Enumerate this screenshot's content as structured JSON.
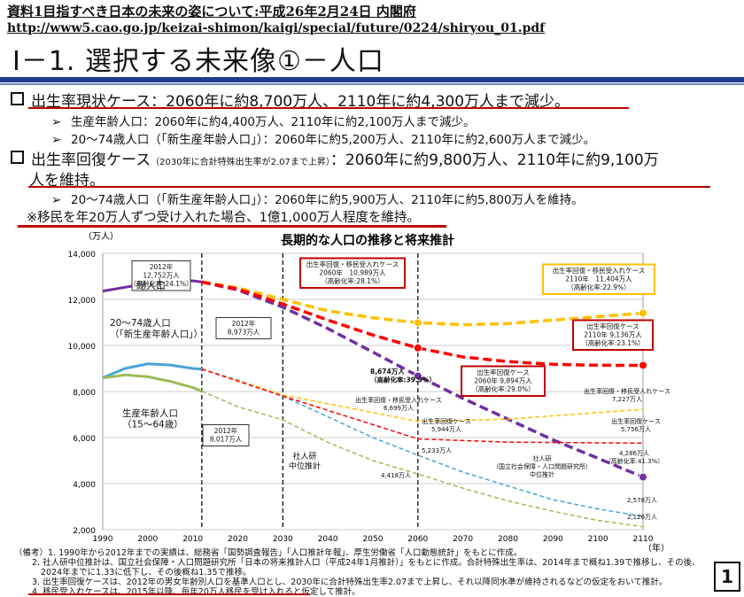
{
  "header": {
    "line1": "資料1目指すべき日本の未来の姿について:平成26年2月24日 内閣府",
    "line2": "http://www5.cao.go.jp/keizai-shimon/kaigi/special/future/0224/shiryou_01.pdf"
  },
  "title": "Ⅰ－1. 選択する未来像①－人口",
  "bullets": {
    "b1": "出生率現状ケース：2060年に約8,700万人、2110年に約4,300万人まで減少。",
    "b1s1": "生産年齢人口：2060年に約4,400万人、2110年に約2,100万人まで減少。",
    "b1s2": "20～74歳人口（「新生産年齢人口」）：2060年に約5,200万人、2110年に約2,600万人まで減少。",
    "b2a": "出生率回復ケース",
    "b2note": "（2030年に合計特殊出生率が2.07まで上昇）",
    "b2b": "：2060年に約9,800万人、2110年に約9,100万",
    "b2c": "人を維持。",
    "b2s1": "20～74歳人口（「新生産年齢人口」）：2060年に約5,900万人、2110年に約5,800万人を維持。",
    "b2s2": "※移民を年20万人ずつ受け入れた場合、1億1,000万人程度を維持。",
    "arrow": "➢"
  },
  "chart_data": {
    "type": "line",
    "title": "長期的な人口の推移と将来推計",
    "ylabel": "（万人）",
    "xlabel": "（年）",
    "xlim": [
      1990,
      2110
    ],
    "ylim": [
      2000,
      14000
    ],
    "xticks": [
      1990,
      2000,
      2010,
      2020,
      2030,
      2040,
      2050,
      2060,
      2070,
      2080,
      2090,
      2100,
      2110
    ],
    "yticks": [
      2000,
      4000,
      6000,
      8000,
      10000,
      12000,
      14000
    ],
    "vlines": [
      2012,
      2030,
      2060
    ],
    "series": [
      {
        "name": "総人口",
        "color": "#7030a0",
        "style": "solid",
        "x": [
          1990,
          2000,
          2010,
          2012
        ],
        "y": [
          12361,
          12693,
          12806,
          12752
        ]
      },
      {
        "name": "20～74歳人口（「新生産年齢人口」）",
        "color": "#4aa3d9",
        "style": "solid",
        "x": [
          1990,
          1995,
          2000,
          2005,
          2010,
          2012
        ],
        "y": [
          8600,
          9000,
          9200,
          9150,
          9000,
          8973
        ]
      },
      {
        "name": "生産年齢人口（15～64歳）",
        "color": "#9bbb59",
        "style": "solid",
        "x": [
          1990,
          1995,
          2000,
          2005,
          2010,
          2012
        ],
        "y": [
          8590,
          8720,
          8640,
          8440,
          8170,
          8017
        ]
      },
      {
        "name": "社人研 中位推計",
        "color": "#7030a0",
        "style": "dash",
        "x": [
          2012,
          2020,
          2030,
          2040,
          2050,
          2060,
          2070,
          2080,
          2090,
          2100,
          2110
        ],
        "y": [
          12752,
          12410,
          11660,
          10730,
          9710,
          8674,
          7700,
          6800,
          5900,
          5100,
          4286
        ]
      },
      {
        "name": "出生率回復・移民受入れケース",
        "color": "#ffc000",
        "style": "dash",
        "x": [
          2012,
          2020,
          2030,
          2040,
          2050,
          2060,
          2070,
          2080,
          2090,
          2100,
          2110
        ],
        "y": [
          12752,
          12500,
          12000,
          11500,
          11200,
          10989,
          10900,
          10950,
          11100,
          11250,
          11404
        ]
      },
      {
        "name": "出生率回復ケース",
        "color": "#ff0000",
        "style": "dash",
        "x": [
          2012,
          2020,
          2030,
          2040,
          2050,
          2060,
          2070,
          2080,
          2090,
          2100,
          2110
        ],
        "y": [
          12752,
          12450,
          11800,
          11100,
          10450,
          9894,
          9500,
          9300,
          9180,
          9140,
          9136
        ]
      },
      {
        "name": "新生産年齢人口（社人研中位）",
        "color": "#4aa3d9",
        "style": "dash",
        "x": [
          2012,
          2020,
          2030,
          2040,
          2050,
          2060,
          2070,
          2080,
          2090,
          2100,
          2110
        ],
        "y": [
          8973,
          8500,
          7800,
          6900,
          6000,
          5233,
          4500,
          3900,
          3300,
          2900,
          2578
        ]
      },
      {
        "name": "生産年齢人口（社人研中位）",
        "color": "#9bbb59",
        "style": "dash",
        "x": [
          2012,
          2020,
          2030,
          2040,
          2050,
          2060,
          2070,
          2080,
          2090,
          2100,
          2110
        ],
        "y": [
          8017,
          7340,
          6770,
          5790,
          5000,
          4418,
          3800,
          3250,
          2800,
          2400,
          2126
        ]
      },
      {
        "name": "新生産年齢人口（出生率回復・移民受入れ）",
        "color": "#ffc000",
        "style": "dash",
        "x": [
          2012,
          2030,
          2060,
          2080,
          2110
        ],
        "y": [
          8973,
          7850,
          6699,
          6800,
          7227
        ]
      },
      {
        "name": "新生産年齢人口（出生率回復）",
        "color": "#ff0000",
        "style": "dash",
        "x": [
          2012,
          2030,
          2060,
          2080,
          2110
        ],
        "y": [
          8973,
          7800,
          5944,
          5800,
          5756
        ]
      }
    ],
    "markers": [
      {
        "x": 2060,
        "y": 10989,
        "color": "#ffc000"
      },
      {
        "x": 2110,
        "y": 11404,
        "color": "#ffc000"
      },
      {
        "x": 2060,
        "y": 9894,
        "color": "#ff0000"
      },
      {
        "x": 2110,
        "y": 9136,
        "color": "#ff0000"
      },
      {
        "x": 2060,
        "y": 8674,
        "color": "#7030a0"
      },
      {
        "x": 2110,
        "y": 4286,
        "color": "#7030a0"
      }
    ],
    "annotations": {
      "a2012": [
        "2012年",
        "12,752万人",
        "（高齢化率:24.1%）"
      ],
      "sou": "総人口",
      "shin": [
        "20～74歳人口",
        "（「新生産年齢人口」）"
      ],
      "a8973": [
        "2012年",
        "8,973万人"
      ],
      "seisan": [
        "生産年齢人口",
        "（15～64歳）"
      ],
      "a8017": [
        "2012年",
        "8,017万人"
      ],
      "imin": [
        "出生率回復・移民受入れケース",
        "2060年　10,989万人",
        "（高齢化率:28.1%）"
      ],
      "imin2110": [
        "出生率回復・移民受入れケース",
        "2110年　11,404万人",
        "（高齢化率:22.9%）"
      ],
      "kaifuku2110": [
        "出生率回復ケース",
        "2110年 9,136万人",
        "（高齢化率:23.1%）"
      ],
      "a8674": [
        "8,674万人",
        "（高齢化率:39.9%）"
      ],
      "kaifuku2060": [
        "出生率回復ケース",
        "2060年 9,894万人",
        "（高齢化率:29.0%）"
      ],
      "l6699": [
        "出生率回復・移民受入れケース",
        "6,699万人"
      ],
      "l5944": [
        "出生率回復ケース",
        "5,944万人"
      ],
      "l5233": "5,233万人",
      "l4418": "4,418万人",
      "shajin1": [
        "社人研",
        "中位推計"
      ],
      "shajin2": [
        "社人研",
        "（国立社会保障・人口問題研究所）",
        "中位推計"
      ],
      "r7227": [
        "出生率回復・移民受入れケース",
        "7,227万人"
      ],
      "r5756": [
        "出生率回復ケース",
        "5,756万人"
      ],
      "r4286": [
        "4,286万人",
        "（高齢化率:41.3%）"
      ],
      "r2578": "2,578万人",
      "r2126": "2,126万人"
    }
  },
  "notes": [
    "（備考）1. 1990年から2012年までの実績は、総務省「国勢調査報告」「人口推計年報」、厚生労働省「人口動態統計」をもとに作成。",
    "2. 社人研中位推計は、国立社会保障・人口問題研究所「日本の将来推計人口（平成24年1月推計）」をもとに作成。合計特殊出生率は、2014年まで概ね1.39で推移し、その後、",
    "2024年までに1.33に低下し、その後概ね1.35で推移。",
    "3. 出生率回復ケースは、2012年の男女年齢別人口を基準人口とし、2030年に合計特殊出生率2.07まで上昇し、それ以降同水準が維持されるなどの仮定をおいて推計。",
    "4. 移民受入れケースは、2015年以降、毎年20万人移民を受け入れると仮定して推計。"
  ],
  "page": "1"
}
